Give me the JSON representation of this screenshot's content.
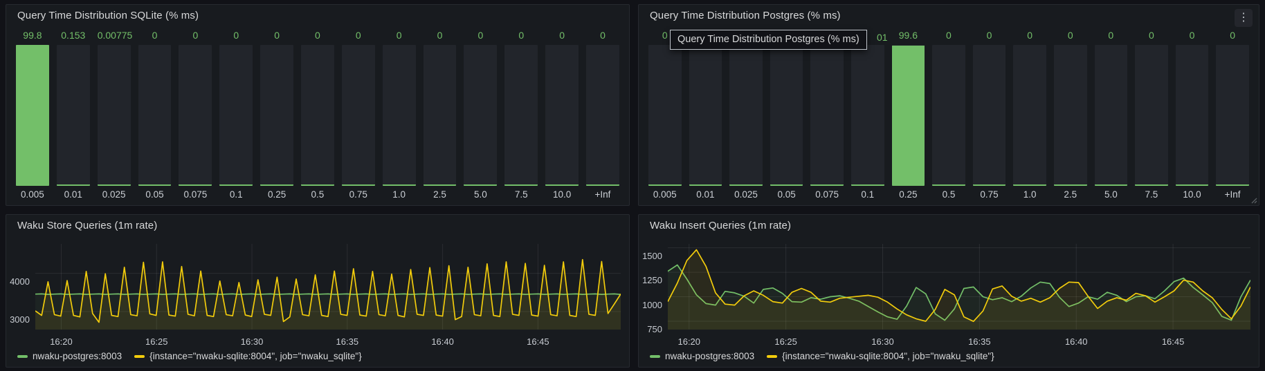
{
  "colors": {
    "green": "#73bf69",
    "yellow": "#f2cc0c",
    "page_bg": "#111217",
    "panel_bg": "#181b1f",
    "bar_bg": "#22252b",
    "title_text": "#d8d9da",
    "axis_text": "#c8ccd2",
    "grid": "rgba(204,204,220,0.10)",
    "tooltip_border": "#c0c5cc"
  },
  "icons": {
    "kebab_menu": "⋮"
  },
  "panels": {
    "sqlite_hist": {
      "title": "Query Time Distribution SQLite (% ms)"
    },
    "postgres_hist": {
      "title": "Query Time Distribution Postgres (% ms)",
      "tooltip": {
        "text": "Query Time Distribution Postgres (% ms)",
        "covered_value_fragment": "01"
      }
    },
    "store": {
      "title": "Waku Store Queries (1m rate)",
      "legend": [
        {
          "label": "nwaku-postgres:8003",
          "color": "green"
        },
        {
          "label": "{instance=\"nwaku-sqlite:8004\", job=\"nwaku_sqlite\"}",
          "color": "yellow"
        }
      ]
    },
    "insert": {
      "title": "Waku Insert Queries (1m rate)",
      "legend": [
        {
          "label": "nwaku-postgres:8003",
          "color": "green"
        },
        {
          "label": "{instance=\"nwaku-sqlite:8004\", job=\"nwaku_sqlite\"}",
          "color": "yellow"
        }
      ]
    }
  },
  "chart_data": [
    {
      "type": "bar",
      "title": "Query Time Distribution SQLite (% ms)",
      "categories": [
        "0.005",
        "0.01",
        "0.025",
        "0.05",
        "0.075",
        "0.1",
        "0.25",
        "0.5",
        "0.75",
        "1.0",
        "2.5",
        "5.0",
        "7.5",
        "10.0",
        "+Inf"
      ],
      "values": [
        99.8,
        0.153,
        0.00775,
        0,
        0,
        0,
        0,
        0,
        0,
        0,
        0,
        0,
        0,
        0,
        0
      ],
      "value_labels": [
        "99.8",
        "0.153",
        "0.00775",
        "0",
        "0",
        "0",
        "0",
        "0",
        "0",
        "0",
        "0",
        "0",
        "0",
        "0",
        "0"
      ],
      "ylim": [
        0,
        100
      ],
      "unit": "%"
    },
    {
      "type": "bar",
      "title": "Query Time Distribution Postgres (% ms)",
      "categories": [
        "0.005",
        "0.01",
        "0.025",
        "0.05",
        "0.075",
        "0.1",
        "0.25",
        "0.5",
        "0.75",
        "1.0",
        "2.5",
        "5.0",
        "7.5",
        "10.0",
        "+Inf"
      ],
      "values": [
        0,
        0,
        0,
        0,
        0,
        0,
        99.6,
        0,
        0,
        0,
        0,
        0,
        0,
        0,
        0
      ],
      "value_labels": [
        "0",
        "",
        "",
        "",
        "",
        "",
        "99.6",
        "0",
        "0",
        "0",
        "0",
        "0",
        "0",
        "0",
        "0"
      ],
      "ylim": [
        0,
        100
      ],
      "unit": "%"
    },
    {
      "type": "line",
      "title": "Waku Store Queries (1m rate)",
      "ylim": [
        2530,
        4770
      ],
      "y_ticks": [
        3000,
        4000
      ],
      "x_domain_min": 30.7,
      "x_ticks": [
        {
          "label": "16:20",
          "at": 1.36
        },
        {
          "label": "16:25",
          "at": 6.36
        },
        {
          "label": "16:30",
          "at": 11.36
        },
        {
          "label": "16:35",
          "at": 16.36
        },
        {
          "label": "16:40",
          "at": 21.36
        },
        {
          "label": "16:45",
          "at": 26.36
        }
      ],
      "series": [
        {
          "name": "nwaku-postgres:8003",
          "color": "#73bf69",
          "fill_opacity": 0.06,
          "values": [
            3456,
            3463,
            3449,
            3456,
            3463,
            3449,
            3456,
            3463,
            3449,
            3456,
            3463,
            3449,
            3456,
            3463,
            3449,
            3456,
            3463,
            3449,
            3456,
            3463,
            3449,
            3456,
            3463,
            3449,
            3456,
            3463,
            3449,
            3456,
            3463,
            3449,
            3456,
            3463,
            3449,
            3456,
            3463,
            3449,
            3456,
            3463,
            3449,
            3456,
            3463,
            3449,
            3456,
            3463,
            3449,
            3456,
            3463,
            3449,
            3456,
            3463,
            3449,
            3456,
            3463,
            3449,
            3456,
            3463,
            3449,
            3456,
            3463,
            3449,
            3456,
            3463,
            3449,
            3456,
            3463,
            3449,
            3456,
            3463,
            3449,
            3456,
            3463,
            3449,
            3456,
            3463,
            3449,
            3456,
            3463,
            3449,
            3456,
            3463,
            3449,
            3456,
            3463,
            3449,
            3456,
            3463,
            3449,
            3456,
            3463,
            3449,
            3456,
            3463,
            3449
          ]
        },
        {
          "name": "{instance=\"nwaku-sqlite:8004\", job=\"nwaku_sqlite\"}",
          "color": "#f2cc0c",
          "fill_opacity": 0.09,
          "values": [
            3020,
            2900,
            3780,
            2920,
            2880,
            3810,
            2900,
            2860,
            4050,
            2950,
            2720,
            3990,
            2900,
            2870,
            4160,
            2920,
            2890,
            4290,
            2940,
            2900,
            4300,
            2910,
            2880,
            4180,
            2930,
            2890,
            4060,
            2900,
            2870,
            3800,
            2920,
            2890,
            3760,
            2910,
            2870,
            3830,
            2930,
            2900,
            3900,
            2740,
            2860,
            3850,
            2920,
            2890,
            3960,
            2900,
            2870,
            4060,
            2930,
            2900,
            4120,
            2910,
            2880,
            4050,
            2920,
            2890,
            3980,
            2900,
            2860,
            4100,
            2930,
            2900,
            4150,
            2910,
            2880,
            4200,
            2790,
            2870,
            4160,
            2920,
            2890,
            4250,
            2900,
            2870,
            4300,
            2930,
            2900,
            4260,
            2910,
            2880,
            4210,
            2920,
            2890,
            4300,
            2900,
            2870,
            4360,
            2930,
            2900,
            4310,
            2950,
            3200,
            3460
          ]
        }
      ]
    },
    {
      "type": "line",
      "title": "Waku Insert Queries (1m rate)",
      "ylim": [
        665,
        1540
      ],
      "y_ticks": [
        750,
        1000,
        1250,
        1500
      ],
      "x_domain_min": 30.1,
      "x_ticks": [
        {
          "label": "16:20",
          "at": 1.1
        },
        {
          "label": "16:25",
          "at": 6.1
        },
        {
          "label": "16:30",
          "at": 11.1
        },
        {
          "label": "16:35",
          "at": 16.1
        },
        {
          "label": "16:40",
          "at": 21.1
        },
        {
          "label": "16:45",
          "at": 26.1
        }
      ],
      "series": [
        {
          "name": "nwaku-postgres:8003",
          "color": "#73bf69",
          "fill_opacity": 0.07,
          "values": [
            1260,
            1325,
            1180,
            1020,
            930,
            915,
            1055,
            1040,
            1005,
            935,
            1075,
            1090,
            1035,
            950,
            945,
            990,
            975,
            1000,
            1010,
            985,
            955,
            900,
            845,
            795,
            770,
            905,
            1095,
            1030,
            825,
            760,
            875,
            1085,
            1100,
            1000,
            970,
            990,
            950,
            1005,
            1090,
            1150,
            1135,
            995,
            900,
            935,
            1000,
            975,
            1045,
            1015,
            950,
            1000,
            1010,
            980,
            1060,
            1155,
            1190,
            1095,
            1020,
            940,
            800,
            760,
            1000,
            1170
          ]
        },
        {
          "name": "{instance=\"nwaku-sqlite:8004\", job=\"nwaku_sqlite\"}",
          "color": "#f2cc0c",
          "fill_opacity": 0.09,
          "values": [
            950,
            1140,
            1370,
            1480,
            1310,
            1040,
            925,
            915,
            1010,
            1060,
            1015,
            950,
            935,
            1045,
            1085,
            1045,
            955,
            945,
            985,
            995,
            1005,
            1015,
            995,
            945,
            875,
            815,
            775,
            750,
            870,
            1075,
            1020,
            795,
            748,
            855,
            1080,
            1110,
            1005,
            955,
            985,
            945,
            990,
            1085,
            1150,
            1145,
            1005,
            880,
            955,
            990,
            965,
            1035,
            1010,
            945,
            1000,
            1060,
            1170,
            1150,
            1060,
            990,
            870,
            775,
            905,
            1100
          ]
        }
      ]
    }
  ]
}
